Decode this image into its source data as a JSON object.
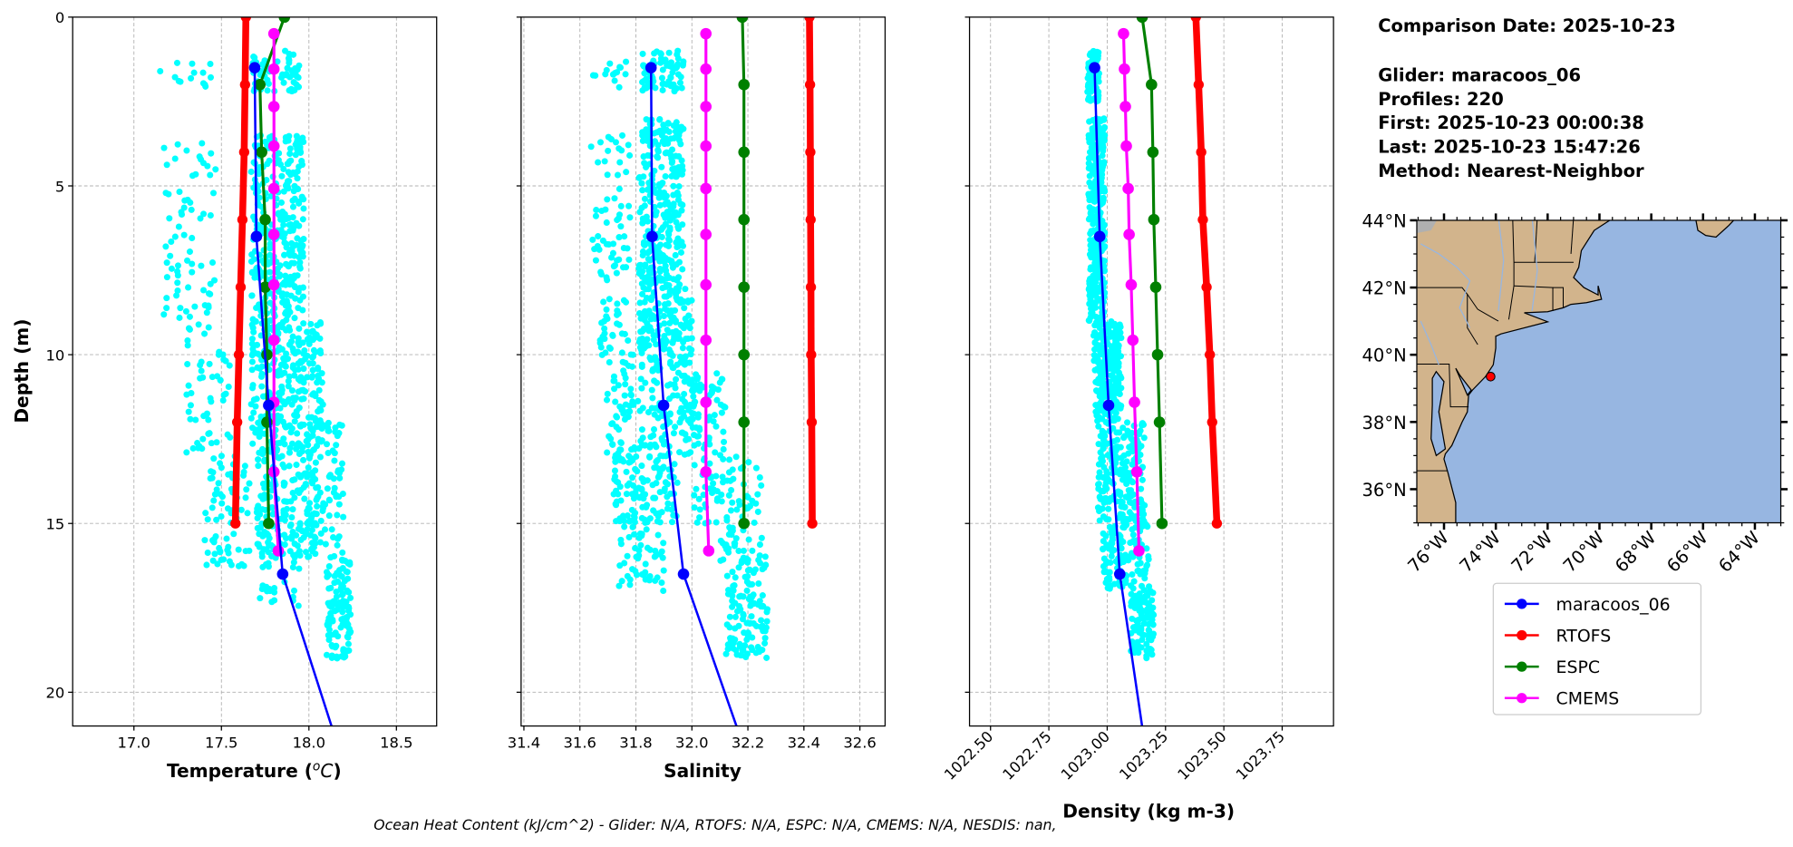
{
  "info": {
    "comparison_date": "Comparison Date: 2025-10-23",
    "glider": "Glider: maracoos_06",
    "profiles": "Profiles: 220",
    "first": "First: 2025-10-23 00:00:38",
    "last": "Last: 2025-10-23 15:47:26",
    "method": "Method: Nearest-Neighbor"
  },
  "footer": "Ocean Heat Content (kJ/cm^2) - Glider: N/A,  RTOFS: N/A,  ESPC: N/A,  CMEMS: N/A,  NESDIS: nan,",
  "colors": {
    "glider": "#0000ff",
    "rtofs": "#ff0000",
    "espc": "#008000",
    "cmems": "#ff00ff",
    "scatter": "#00ffff",
    "land": "#d2b48c",
    "ocean": "#97b6e1"
  },
  "legend": {
    "entries": [
      "maracoos_06",
      "RTOFS",
      "ESPC",
      "CMEMS"
    ]
  },
  "chart_data": [
    {
      "type": "line",
      "ylabel": "Depth (m)",
      "xlabel": {
        "text": "Temperature (",
        "sup": "o",
        "unit": "C",
        "close": ")"
      },
      "xlim": [
        16.65,
        18.73
      ],
      "ylim": [
        21,
        0
      ],
      "xticks": [
        "17.0",
        "17.5",
        "18.0",
        "18.5"
      ],
      "yticks": [
        "0",
        "5",
        "10",
        "15",
        "20"
      ],
      "grid": true,
      "series": [
        {
          "name": "maracoos_06",
          "key": "glider",
          "depth": [
            1.5,
            6.5,
            11.5,
            16.5,
            21.5
          ],
          "values": [
            17.69,
            17.7,
            17.77,
            17.85,
            18.16
          ]
        },
        {
          "name": "RTOFS",
          "key": "rtofs",
          "depth": [
            0,
            2,
            4,
            6,
            8,
            10,
            12,
            15
          ],
          "values": [
            17.64,
            17.635,
            17.63,
            17.62,
            17.61,
            17.6,
            17.59,
            17.58
          ]
        },
        {
          "name": "ESPC",
          "key": "espc",
          "depth": [
            0,
            2,
            4,
            6,
            8,
            10,
            12,
            15
          ],
          "values": [
            17.86,
            17.72,
            17.73,
            17.75,
            17.75,
            17.76,
            17.76,
            17.77
          ]
        },
        {
          "name": "CMEMS",
          "key": "cmems",
          "depth": [
            0.49,
            1.54,
            2.65,
            3.82,
            5.08,
            6.44,
            7.93,
            9.57,
            11.41,
            13.47,
            15.81
          ],
          "values": [
            17.8,
            17.8,
            17.8,
            17.8,
            17.8,
            17.8,
            17.8,
            17.8,
            17.8,
            17.8,
            17.825
          ]
        }
      ],
      "scatter_bins": [
        [
          1.0,
          2.2,
          17.68,
          17.95,
          60
        ],
        [
          1.3,
          2.1,
          17.15,
          17.45,
          14
        ],
        [
          3.5,
          9.0,
          17.67,
          17.97,
          320
        ],
        [
          3.7,
          9.0,
          17.17,
          17.47,
          70
        ],
        [
          9.0,
          13.0,
          17.67,
          18.08,
          300
        ],
        [
          9.0,
          13.0,
          17.3,
          17.55,
          55
        ],
        [
          13.0,
          16.0,
          17.7,
          18.05,
          160
        ],
        [
          13.0,
          16.3,
          17.4,
          17.66,
          70
        ],
        [
          12.0,
          16.0,
          18.0,
          18.2,
          90
        ],
        [
          16.0,
          19.0,
          18.1,
          18.24,
          120
        ],
        [
          16.0,
          17.5,
          17.72,
          17.95,
          25
        ]
      ]
    },
    {
      "type": "line",
      "xlabel": {
        "text": "Salinity"
      },
      "xlim": [
        31.39,
        32.69
      ],
      "ylim": [
        21,
        0
      ],
      "xticks": [
        "31.4",
        "31.6",
        "31.8",
        "32.0",
        "32.2",
        "32.4",
        "32.6"
      ],
      "grid": true,
      "series": [
        {
          "name": "maracoos_06",
          "key": "glider",
          "depth": [
            1.5,
            6.5,
            11.5,
            16.5,
            21.5
          ],
          "values": [
            31.854,
            31.858,
            31.899,
            31.97,
            32.18
          ]
        },
        {
          "name": "RTOFS",
          "key": "rtofs",
          "depth": [
            0,
            2,
            4,
            6,
            8,
            10,
            12,
            15
          ],
          "values": [
            32.42,
            32.422,
            32.423,
            32.424,
            32.425,
            32.426,
            32.428,
            32.43
          ]
        },
        {
          "name": "ESPC",
          "key": "espc",
          "depth": [
            0,
            2,
            4,
            6,
            8,
            10,
            12,
            15
          ],
          "values": [
            32.18,
            32.186,
            32.186,
            32.186,
            32.186,
            32.186,
            32.186,
            32.186
          ]
        },
        {
          "name": "CMEMS",
          "key": "cmems",
          "depth": [
            0.49,
            1.54,
            2.65,
            3.82,
            5.08,
            6.44,
            7.93,
            9.57,
            11.41,
            13.47,
            15.81
          ],
          "values": [
            32.05,
            32.05,
            32.05,
            32.05,
            32.05,
            32.05,
            32.05,
            32.05,
            32.05,
            32.05,
            32.06
          ]
        }
      ],
      "scatter_bins": [
        [
          1.0,
          2.2,
          31.82,
          31.97,
          70
        ],
        [
          1.3,
          2.1,
          31.64,
          31.77,
          14
        ],
        [
          3.0,
          8.0,
          31.81,
          31.97,
          280
        ],
        [
          3.5,
          8.0,
          31.64,
          31.78,
          60
        ],
        [
          8.0,
          10.5,
          31.81,
          32.0,
          170
        ],
        [
          8.0,
          10.5,
          31.67,
          31.79,
          40
        ],
        [
          10.5,
          13.0,
          31.69,
          32.03,
          160
        ],
        [
          10.5,
          13.0,
          32.0,
          32.12,
          50
        ],
        [
          13.0,
          15.0,
          31.72,
          31.95,
          120
        ],
        [
          13.0,
          15.0,
          32.0,
          32.25,
          70
        ],
        [
          15.0,
          17.0,
          31.74,
          31.9,
          50
        ],
        [
          15.0,
          17.0,
          32.1,
          32.27,
          60
        ],
        [
          17.0,
          19.0,
          32.12,
          32.27,
          90
        ]
      ]
    },
    {
      "type": "line",
      "xlabel": {
        "text": "Density (kg m-3)"
      },
      "xlim": [
        1022.41,
        1023.97
      ],
      "ylim": [
        21,
        0
      ],
      "xticks": [
        "1022.50",
        "1022.75",
        "1023.00",
        "1023.25",
        "1023.50",
        "1023.75"
      ],
      "grid": true,
      "series": [
        {
          "name": "maracoos_06",
          "key": "glider",
          "depth": [
            1.5,
            6.5,
            11.5,
            16.5,
            21.5
          ],
          "values": [
            1022.946,
            1022.968,
            1023.006,
            1023.054,
            1023.16
          ]
        },
        {
          "name": "RTOFS",
          "key": "rtofs",
          "depth": [
            0,
            2,
            4,
            6,
            8,
            10,
            12,
            15
          ],
          "values": [
            1023.38,
            1023.392,
            1023.403,
            1023.41,
            1023.426,
            1023.44,
            1023.45,
            1023.47
          ]
        },
        {
          "name": "ESPC",
          "key": "espc",
          "depth": [
            0,
            2,
            4,
            6,
            8,
            10,
            12,
            15
          ],
          "values": [
            1023.15,
            1023.19,
            1023.196,
            1023.2,
            1023.208,
            1023.216,
            1023.224,
            1023.235
          ]
        },
        {
          "name": "CMEMS",
          "key": "cmems",
          "depth": [
            0.49,
            1.54,
            2.65,
            3.82,
            5.08,
            6.44,
            7.93,
            9.57,
            11.41,
            13.47,
            15.81
          ],
          "values": [
            1023.07,
            1023.074,
            1023.078,
            1023.082,
            1023.09,
            1023.094,
            1023.103,
            1023.11,
            1023.117,
            1023.127,
            1023.136
          ]
        }
      ],
      "scatter_bins": [
        [
          1.0,
          2.5,
          1022.915,
          1022.965,
          80
        ],
        [
          3.0,
          9.0,
          1022.92,
          1022.99,
          330
        ],
        [
          9.0,
          12.0,
          1022.94,
          1023.06,
          250
        ],
        [
          12.0,
          15.0,
          1022.96,
          1023.16,
          220
        ],
        [
          15.0,
          17.0,
          1022.98,
          1023.18,
          120
        ],
        [
          17.0,
          19.0,
          1023.1,
          1023.2,
          100
        ]
      ]
    }
  ],
  "map": {
    "lon_range": [
      -77.05,
      -63.0
    ],
    "lat_range": [
      35.0,
      44.0
    ],
    "lat_ticks": [
      "44°N",
      "42°N",
      "40°N",
      "38°N",
      "36°N"
    ],
    "lon_ticks": [
      "76°W",
      "74°W",
      "72°W",
      "70°W",
      "68°W",
      "66°W",
      "64°W"
    ],
    "glider_position": {
      "lon": -74.2,
      "lat": 39.35
    }
  }
}
